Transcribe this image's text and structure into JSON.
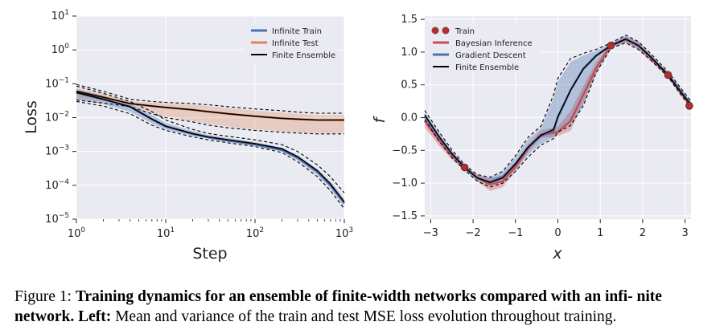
{
  "caption": {
    "prefix": "Figure 1: ",
    "bold": "Training dynamics for an ensemble of finite-width networks compared with an infi- nite network. Left:",
    "rest": " Mean and variance of the train and test MSE loss evolution throughout training."
  },
  "chart_data": [
    {
      "type": "line",
      "title": "",
      "xlabel": "Step",
      "ylabel": "Loss",
      "xscale": "log",
      "yscale": "log",
      "xlim": [
        1,
        1000
      ],
      "ylim": [
        1e-05,
        10
      ],
      "x_ticks": [
        {
          "value": 1,
          "base": "10",
          "exp": "0"
        },
        {
          "value": 10,
          "base": "10",
          "exp": "1"
        },
        {
          "value": 100,
          "base": "10",
          "exp": "2"
        },
        {
          "value": 1000,
          "base": "10",
          "exp": "3"
        }
      ],
      "y_ticks": [
        {
          "value": 1e-05,
          "base": "10",
          "exp": "−5"
        },
        {
          "value": 0.0001,
          "base": "10",
          "exp": "−4"
        },
        {
          "value": 0.001,
          "base": "10",
          "exp": "−3"
        },
        {
          "value": 0.01,
          "base": "10",
          "exp": "−2"
        },
        {
          "value": 0.1,
          "base": "10",
          "exp": "−1"
        },
        {
          "value": 1,
          "base": "10",
          "exp": "0"
        },
        {
          "value": 10,
          "base": "10",
          "exp": "1"
        }
      ],
      "grid": true,
      "legend_position": "top-right",
      "x": [
        1,
        2,
        4,
        7,
        10,
        20,
        30,
        50,
        100,
        200,
        300,
        500,
        700,
        1000
      ],
      "series": [
        {
          "name": "Infinite Train",
          "color": "#4c72b0",
          "mean": [
            0.055,
            0.035,
            0.021,
            0.009,
            0.0055,
            0.0033,
            0.0026,
            0.0021,
            0.0016,
            0.0011,
            0.00065,
            0.00025,
            0.0001,
            3e-05
          ],
          "lower": [
            0.034,
            0.025,
            0.015,
            0.0068,
            0.0045,
            0.0029,
            0.0024,
            0.0019,
            0.0015,
            0.001,
            0.00055,
            0.0002,
            8e-05,
            2.2e-05
          ],
          "upper": [
            0.07,
            0.045,
            0.026,
            0.012,
            0.007,
            0.004,
            0.0031,
            0.0025,
            0.0019,
            0.0013,
            0.00078,
            0.0003,
            0.00013,
            4e-05
          ]
        },
        {
          "name": "Infinite Test",
          "color": "#dd8452",
          "mean": [
            0.06,
            0.04,
            0.026,
            0.022,
            0.02,
            0.017,
            0.015,
            0.013,
            0.011,
            0.0095,
            0.009,
            0.0085,
            0.0085,
            0.0085
          ],
          "lower": [
            0.037,
            0.03,
            0.023,
            0.014,
            0.011,
            0.008,
            0.0065,
            0.0055,
            0.0045,
            0.004,
            0.0037,
            0.0035,
            0.0035,
            0.0035
          ],
          "upper": [
            0.075,
            0.05,
            0.03,
            0.028,
            0.026,
            0.024,
            0.022,
            0.019,
            0.016,
            0.014,
            0.013,
            0.012,
            0.012,
            0.012
          ]
        },
        {
          "name": "Finite Ensemble",
          "color": "#000000",
          "train_mean": [
            0.055,
            0.035,
            0.021,
            0.009,
            0.0056,
            0.0034,
            0.0027,
            0.0022,
            0.0017,
            0.0012,
            0.0007,
            0.00027,
            0.00011,
            3.2e-05
          ],
          "train_lower": [
            0.03,
            0.022,
            0.013,
            0.006,
            0.0042,
            0.0027,
            0.0022,
            0.0018,
            0.0014,
            0.00093,
            0.0005,
            0.00018,
            7e-05,
            2e-05
          ],
          "train_upper": [
            0.085,
            0.052,
            0.03,
            0.015,
            0.0085,
            0.0045,
            0.0034,
            0.0028,
            0.0022,
            0.0016,
            0.001,
            0.0004,
            0.00018,
            6e-05
          ],
          "test_mean": [
            0.06,
            0.04,
            0.026,
            0.022,
            0.02,
            0.017,
            0.015,
            0.013,
            0.011,
            0.0095,
            0.009,
            0.0085,
            0.0085,
            0.0085
          ],
          "test_lower": [
            0.033,
            0.027,
            0.021,
            0.013,
            0.01,
            0.0075,
            0.006,
            0.005,
            0.0042,
            0.0037,
            0.0035,
            0.0033,
            0.0033,
            0.0033
          ],
          "test_upper": [
            0.095,
            0.06,
            0.035,
            0.03,
            0.028,
            0.026,
            0.024,
            0.021,
            0.018,
            0.016,
            0.0145,
            0.0135,
            0.0135,
            0.0135
          ]
        }
      ]
    },
    {
      "type": "line",
      "title": "",
      "xlabel": "x",
      "ylabel": "f",
      "xlim": [
        -3.14,
        3.14
      ],
      "ylim": [
        -1.5,
        1.5
      ],
      "x_ticks": [
        {
          "value": -3,
          "label": "−3"
        },
        {
          "value": -2,
          "label": "−2"
        },
        {
          "value": -1,
          "label": "−1"
        },
        {
          "value": 0,
          "label": "0"
        },
        {
          "value": 1,
          "label": "1"
        },
        {
          "value": 2,
          "label": "2"
        },
        {
          "value": 3,
          "label": "3"
        }
      ],
      "y_ticks": [
        {
          "value": -1.5,
          "label": "−1.5"
        },
        {
          "value": -1.0,
          "label": "−1.0"
        },
        {
          "value": -0.5,
          "label": "−0.5"
        },
        {
          "value": 0.0,
          "label": "0.0"
        },
        {
          "value": 0.5,
          "label": "0.5"
        },
        {
          "value": 1.0,
          "label": "1.0"
        },
        {
          "value": 1.5,
          "label": "1.5"
        }
      ],
      "grid": true,
      "legend_position": "top-left",
      "train_points": {
        "name": "Train",
        "color": "#a83232",
        "x": [
          -2.2,
          1.25,
          2.6,
          3.1
        ],
        "y": [
          -0.76,
          1.1,
          0.65,
          0.18
        ]
      },
      "x": [
        -3.14,
        -2.8,
        -2.5,
        -2.2,
        -1.9,
        -1.6,
        -1.3,
        -1.0,
        -0.7,
        -0.4,
        -0.1,
        0.0,
        0.3,
        0.6,
        0.9,
        1.25,
        1.6,
        1.9,
        2.2,
        2.6,
        2.9,
        3.14
      ],
      "series": [
        {
          "name": "Bayesian Inference",
          "color": "#c44e52",
          "mean": [
            -0.05,
            -0.35,
            -0.58,
            -0.76,
            -0.92,
            -1.02,
            -0.97,
            -0.75,
            -0.47,
            -0.26,
            -0.23,
            -0.22,
            -0.05,
            0.35,
            0.75,
            1.1,
            1.19,
            1.1,
            0.9,
            0.65,
            0.38,
            0.18
          ],
          "lower": [
            -0.15,
            -0.43,
            -0.64,
            -0.8,
            -0.97,
            -1.12,
            -1.06,
            -0.82,
            -0.52,
            -0.31,
            -0.3,
            -0.28,
            -0.2,
            0.22,
            0.66,
            1.07,
            1.14,
            1.04,
            0.85,
            0.62,
            0.33,
            0.13
          ],
          "upper": [
            0.05,
            -0.27,
            -0.52,
            -0.72,
            -0.87,
            -0.92,
            -0.88,
            -0.68,
            -0.41,
            -0.2,
            -0.15,
            -0.13,
            0.1,
            0.48,
            0.84,
            1.13,
            1.24,
            1.16,
            0.95,
            0.68,
            0.43,
            0.23
          ]
        },
        {
          "name": "Gradient Descent",
          "color": "#4c72b0",
          "mean": [
            0.02,
            -0.3,
            -0.55,
            -0.76,
            -0.92,
            -0.98,
            -0.9,
            -0.7,
            -0.45,
            -0.28,
            -0.2,
            0.0,
            0.42,
            0.75,
            0.95,
            1.1,
            1.2,
            1.1,
            0.92,
            0.66,
            0.4,
            0.2
          ],
          "lower": [
            -0.05,
            -0.36,
            -0.6,
            -0.79,
            -0.96,
            -1.04,
            -0.97,
            -0.8,
            -0.57,
            -0.4,
            -0.3,
            -0.2,
            -0.1,
            0.2,
            0.7,
            1.07,
            1.15,
            1.05,
            0.88,
            0.63,
            0.36,
            0.16
          ],
          "upper": [
            0.09,
            -0.24,
            -0.5,
            -0.73,
            -0.88,
            -0.92,
            -0.83,
            -0.6,
            -0.33,
            -0.16,
            0.3,
            0.55,
            0.85,
            0.95,
            1.02,
            1.13,
            1.25,
            1.15,
            0.96,
            0.69,
            0.44,
            0.24
          ]
        },
        {
          "name": "Finite Ensemble",
          "color": "#000000",
          "mean": [
            0.04,
            -0.29,
            -0.55,
            -0.76,
            -0.92,
            -0.99,
            -0.92,
            -0.71,
            -0.45,
            -0.27,
            -0.18,
            0.02,
            0.42,
            0.74,
            0.94,
            1.1,
            1.2,
            1.1,
            0.92,
            0.65,
            0.39,
            0.19
          ],
          "lower": [
            -0.03,
            -0.36,
            -0.61,
            -0.8,
            -0.97,
            -1.06,
            -1.0,
            -0.82,
            -0.6,
            -0.42,
            -0.32,
            -0.22,
            -0.12,
            0.18,
            0.68,
            1.06,
            1.14,
            1.04,
            0.87,
            0.62,
            0.35,
            0.15
          ],
          "upper": [
            0.11,
            -0.22,
            -0.49,
            -0.72,
            -0.87,
            -0.91,
            -0.82,
            -0.58,
            -0.3,
            -0.13,
            0.35,
            0.6,
            0.9,
            0.98,
            1.04,
            1.14,
            1.26,
            1.16,
            0.97,
            0.7,
            0.45,
            0.25
          ]
        }
      ]
    }
  ]
}
